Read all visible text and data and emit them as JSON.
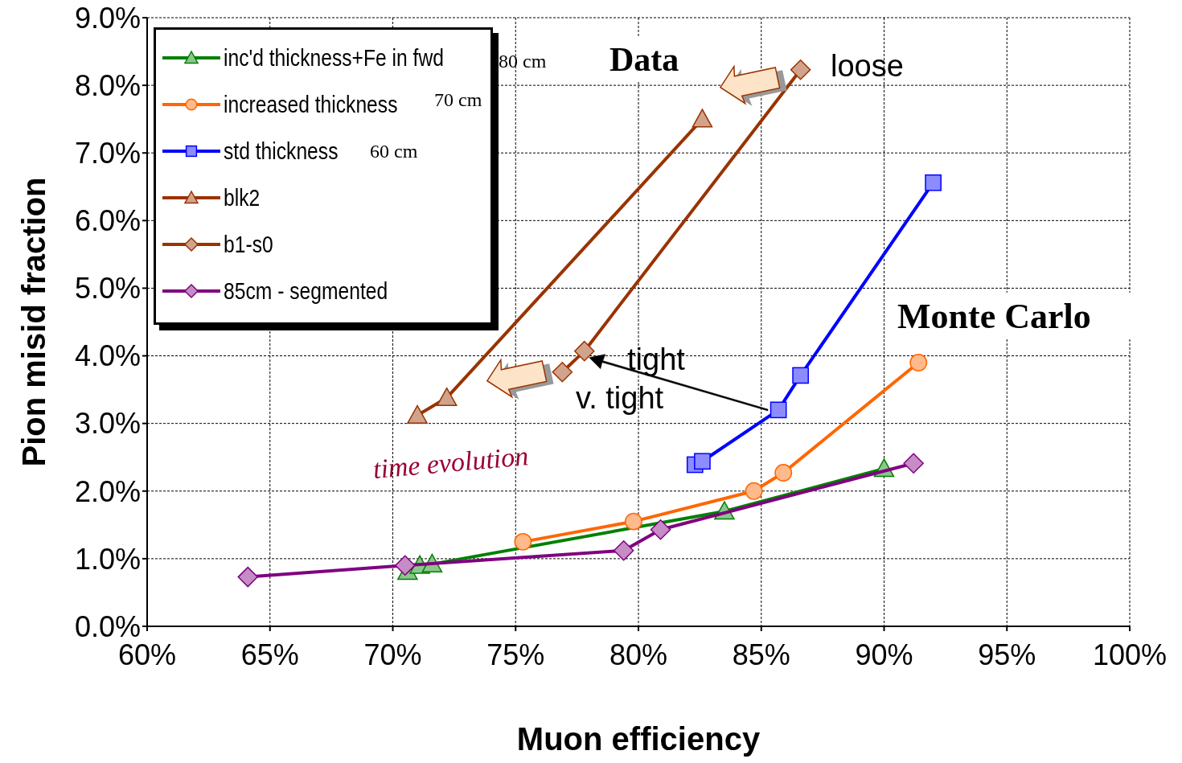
{
  "chart_data": {
    "type": "line",
    "xlabel": "Muon efficiency",
    "ylabel": "Pion misid fraction",
    "xlim": [
      60,
      100
    ],
    "xticks": [
      {
        "value": 60,
        "label": "60%"
      },
      {
        "value": 65,
        "label": "65%"
      },
      {
        "value": 70,
        "label": "70%"
      },
      {
        "value": 75,
        "label": "75%"
      },
      {
        "value": 80,
        "label": "80%"
      },
      {
        "value": 85,
        "label": "85%"
      },
      {
        "value": 90,
        "label": "90%"
      },
      {
        "value": 95,
        "label": "95%"
      },
      {
        "value": 100,
        "label": "100%"
      }
    ],
    "ylim": [
      0,
      9
    ],
    "yticks": [
      {
        "value": 0,
        "label": "0.0%"
      },
      {
        "value": 1,
        "label": "1.0%"
      },
      {
        "value": 2,
        "label": "2.0%"
      },
      {
        "value": 3,
        "label": "3.0%"
      },
      {
        "value": 4,
        "label": "4.0%"
      },
      {
        "value": 5,
        "label": "5.0%"
      },
      {
        "value": 6,
        "label": "6.0%"
      },
      {
        "value": 7,
        "label": "7.0%"
      },
      {
        "value": 8,
        "label": "8.0%"
      },
      {
        "value": 9,
        "label": "9.0%"
      }
    ],
    "grid": true,
    "legend": "top left",
    "series": [
      {
        "name": "inc'd thickness+Fe in fwd",
        "color": "#008000",
        "marker": "triangle",
        "x": [
          70.6,
          71.1,
          71.6,
          83.5,
          90.0
        ],
        "values": [
          0.81,
          0.9,
          0.92,
          1.7,
          2.33
        ]
      },
      {
        "name": "increased thickness",
        "color": "#ff6600",
        "marker": "circle",
        "x": [
          75.3,
          79.8,
          84.7,
          85.9,
          91.4
        ],
        "values": [
          1.25,
          1.55,
          2.0,
          2.27,
          3.9
        ]
      },
      {
        "name": "std thickness",
        "color": "#0000ff",
        "marker": "square",
        "x": [
          82.3,
          82.6,
          85.7,
          86.6,
          92.0
        ],
        "values": [
          2.39,
          2.44,
          3.2,
          3.71,
          6.56
        ]
      },
      {
        "name": "blk2",
        "color": "#993300",
        "marker": "triangle",
        "x": [
          71.0,
          72.2,
          82.6
        ],
        "values": [
          3.12,
          3.38,
          7.5
        ]
      },
      {
        "name": "b1-s0",
        "color": "#993300",
        "marker": "diamond",
        "x": [
          76.9,
          77.8,
          86.6
        ],
        "values": [
          3.76,
          4.07,
          8.23
        ]
      },
      {
        "name": "85cm - segmented",
        "color": "#800080",
        "marker": "diamond",
        "x": [
          64.1,
          70.5,
          79.4,
          80.9,
          91.2
        ],
        "values": [
          0.73,
          0.9,
          1.12,
          1.43,
          2.41
        ]
      }
    ],
    "annotations": [
      "80 cm",
      "70 cm",
      "60 cm",
      "Data",
      "loose",
      {
        "text": "tight",
        "x": 77.8,
        "y": 4.07
      },
      "v. tight",
      "Monte Carlo",
      "time evolution"
    ]
  }
}
